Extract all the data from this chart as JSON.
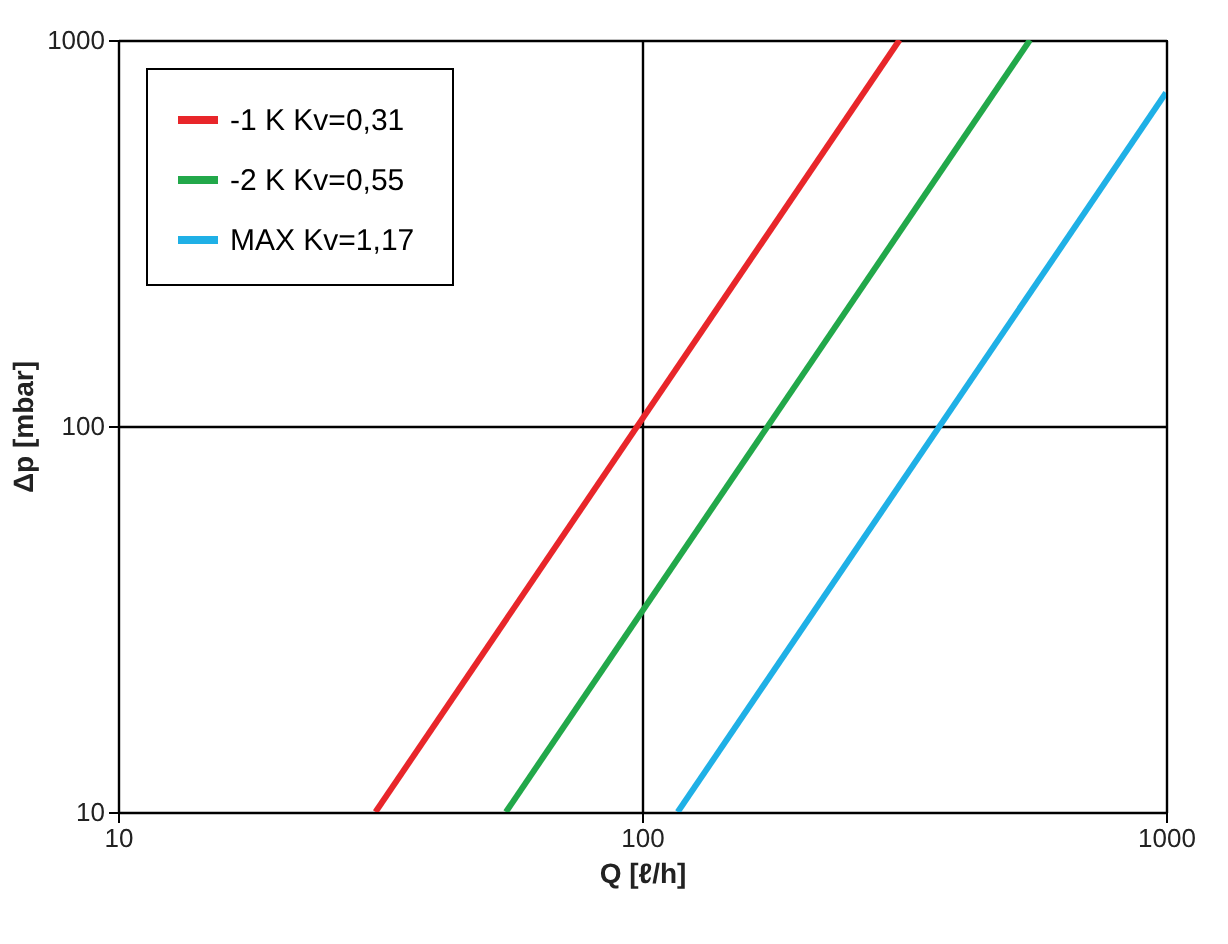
{
  "chart_data": {
    "type": "line",
    "xlabel": "Q [ℓ/h]",
    "ylabel": "Δp [mbar]",
    "log": "xy",
    "xlim": [
      10,
      1000
    ],
    "ylim": [
      10,
      1000
    ],
    "xticks": [
      10,
      100,
      1000
    ],
    "yticks": [
      10,
      100,
      1000
    ],
    "grid": true,
    "legend": "top left",
    "line_style": "solid",
    "series": [
      {
        "name": "-1 K   Kv=0,31",
        "color": "#e8262a",
        "x": [
          31,
          310
        ],
        "values": [
          10,
          1000
        ]
      },
      {
        "name": "-2 K   Kv=0,55",
        "color": "#22a84a",
        "x": [
          55,
          550
        ],
        "values": [
          10,
          1000
        ]
      },
      {
        "name": "MAX  Kv=1,17",
        "color": "#1fb0e6",
        "x": [
          117,
          1000
        ],
        "values": [
          10,
          730
        ]
      }
    ]
  }
}
